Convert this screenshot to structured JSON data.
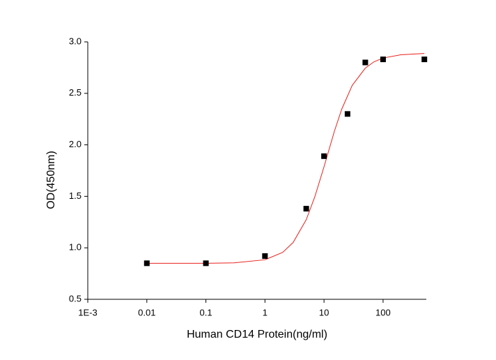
{
  "chart_data": {
    "type": "scatter",
    "x_label": "Human CD14 Protein(ng/ml)",
    "y_label": "OD(450nm)",
    "x_log": true,
    "xlim": [
      0.001,
      540
    ],
    "ylim": [
      0.5,
      3.0
    ],
    "xticks": [
      {
        "value": 0.001,
        "label": "1E-3"
      },
      0.01,
      0.1,
      1,
      10,
      100
    ],
    "yticks": [
      0.5,
      {
        "value": 1,
        "label": "1.0"
      },
      1.5,
      {
        "value": 2,
        "label": "2.0"
      },
      2.5,
      {
        "value": 3,
        "label": "3.0"
      }
    ],
    "series": [
      {
        "type": "scatter",
        "color": "#000000",
        "x": [
          0.01,
          0.1,
          1,
          5,
          10,
          25,
          50,
          100,
          500
        ],
        "values": [
          0.85,
          0.85,
          0.92,
          1.38,
          1.89,
          2.3,
          2.8,
          2.83,
          2.83
        ]
      },
      {
        "type": "line",
        "color": "#e8211c",
        "x": [
          0.01,
          0.03,
          0.1,
          0.3,
          1,
          2,
          3,
          5,
          7,
          10,
          15,
          20,
          30,
          50,
          70,
          100,
          200,
          500
        ],
        "values": [
          0.85,
          0.85,
          0.85,
          0.854,
          0.884,
          0.956,
          1.052,
          1.273,
          1.497,
          1.787,
          2.133,
          2.348,
          2.577,
          2.745,
          2.806,
          2.843,
          2.875,
          2.887
        ]
      }
    ]
  }
}
